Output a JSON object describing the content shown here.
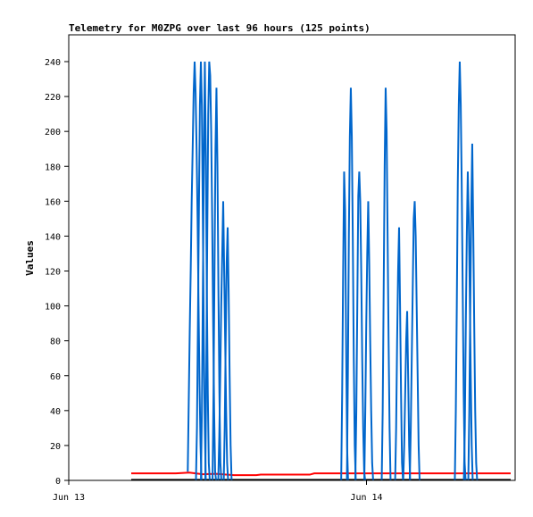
{
  "chart_data": {
    "type": "line",
    "title": "Telemetry for M0ZPG over last 96 hours (125 points)",
    "xlabel": "",
    "ylabel": "Values",
    "x_tick_labels": [
      "Jun 13",
      "Jun 14"
    ],
    "ylim": [
      0,
      240
    ],
    "yticks": [
      0,
      20,
      40,
      60,
      80,
      100,
      120,
      140,
      160,
      180,
      200,
      220,
      240
    ],
    "grid": false,
    "legend": "none",
    "series": [
      {
        "color": "#0066cc",
        "bursts": [
          {
            "x": 0.282,
            "values": [
              5,
              45,
              85,
              120,
              160,
              190,
              222,
              240,
              222,
              190,
              150,
              100,
              55,
              20,
              0
            ]
          },
          {
            "x": 0.296,
            "values": [
              0,
              30,
              90,
              155,
              215,
              240,
              215,
              150,
              80,
              30,
              0
            ]
          },
          {
            "x": 0.306,
            "values": [
              0,
              40,
              110,
              185,
              240,
              185,
              110,
              50,
              10,
              0
            ]
          },
          {
            "x": 0.318,
            "values": [
              0,
              60,
              140,
              210,
              240,
              232,
              200,
              150,
              90,
              40,
              5,
              0
            ]
          },
          {
            "x": 0.332,
            "values": [
              0,
              50,
              120,
              190,
              225,
              180,
              110,
              50,
              10,
              0
            ]
          },
          {
            "x": 0.346,
            "values": [
              0,
              25,
              60,
              100,
              130,
              160,
              120,
              80,
              40,
              10,
              0
            ]
          },
          {
            "x": 0.356,
            "values": [
              0,
              30,
              80,
              125,
              145,
              108,
              60,
              20,
              0
            ]
          },
          {
            "x": 0.618,
            "values": [
              0,
              50,
              120,
              177,
              155,
              80,
              20,
              0
            ]
          },
          {
            "x": 0.633,
            "values": [
              0,
              60,
              140,
              197,
              225,
              197,
              140,
              70,
              20,
              0
            ]
          },
          {
            "x": 0.653,
            "values": [
              0,
              40,
              100,
              163,
              177,
              160,
              120,
              70,
              30,
              5,
              0
            ]
          },
          {
            "x": 0.672,
            "values": [
              0,
              40,
              90,
              130,
              160,
              125,
              80,
              40,
              10,
              0
            ]
          },
          {
            "x": 0.711,
            "values": [
              0,
              40,
              110,
              180,
              225,
              200,
              140,
              80,
              30,
              0
            ]
          },
          {
            "x": 0.74,
            "values": [
              0,
              30,
              80,
              120,
              145,
              100,
              50,
              10,
              0
            ]
          },
          {
            "x": 0.757,
            "values": [
              0,
              20,
              50,
              80,
              97,
              60,
              20,
              0
            ]
          },
          {
            "x": 0.775,
            "values": [
              0,
              30,
              70,
              110,
              150,
              160,
              140,
              100,
              60,
              20,
              0
            ]
          },
          {
            "x": 0.877,
            "values": [
              0,
              40,
              100,
              170,
              215,
              240,
              216,
              170,
              110,
              50,
              10,
              0
            ]
          },
          {
            "x": 0.895,
            "values": [
              0,
              30,
              90,
              140,
              177,
              150,
              110,
              60,
              20,
              0
            ]
          },
          {
            "x": 0.905,
            "values": [
              0,
              40,
              100,
              155,
              193,
              145,
              90,
              40,
              10,
              0
            ]
          }
        ]
      },
      {
        "color": "#ff0000",
        "points": [
          [
            0.14,
            4
          ],
          [
            0.24,
            4
          ],
          [
            0.27,
            4.5
          ],
          [
            0.3,
            3.5
          ],
          [
            0.33,
            3.8
          ],
          [
            0.37,
            3
          ],
          [
            0.42,
            3
          ],
          [
            0.43,
            3.3
          ],
          [
            0.54,
            3.3
          ],
          [
            0.55,
            4
          ],
          [
            0.99,
            4
          ]
        ]
      },
      {
        "color": "#000000",
        "points": [
          [
            0.14,
            0.3
          ],
          [
            0.99,
            0.3
          ]
        ]
      }
    ]
  }
}
